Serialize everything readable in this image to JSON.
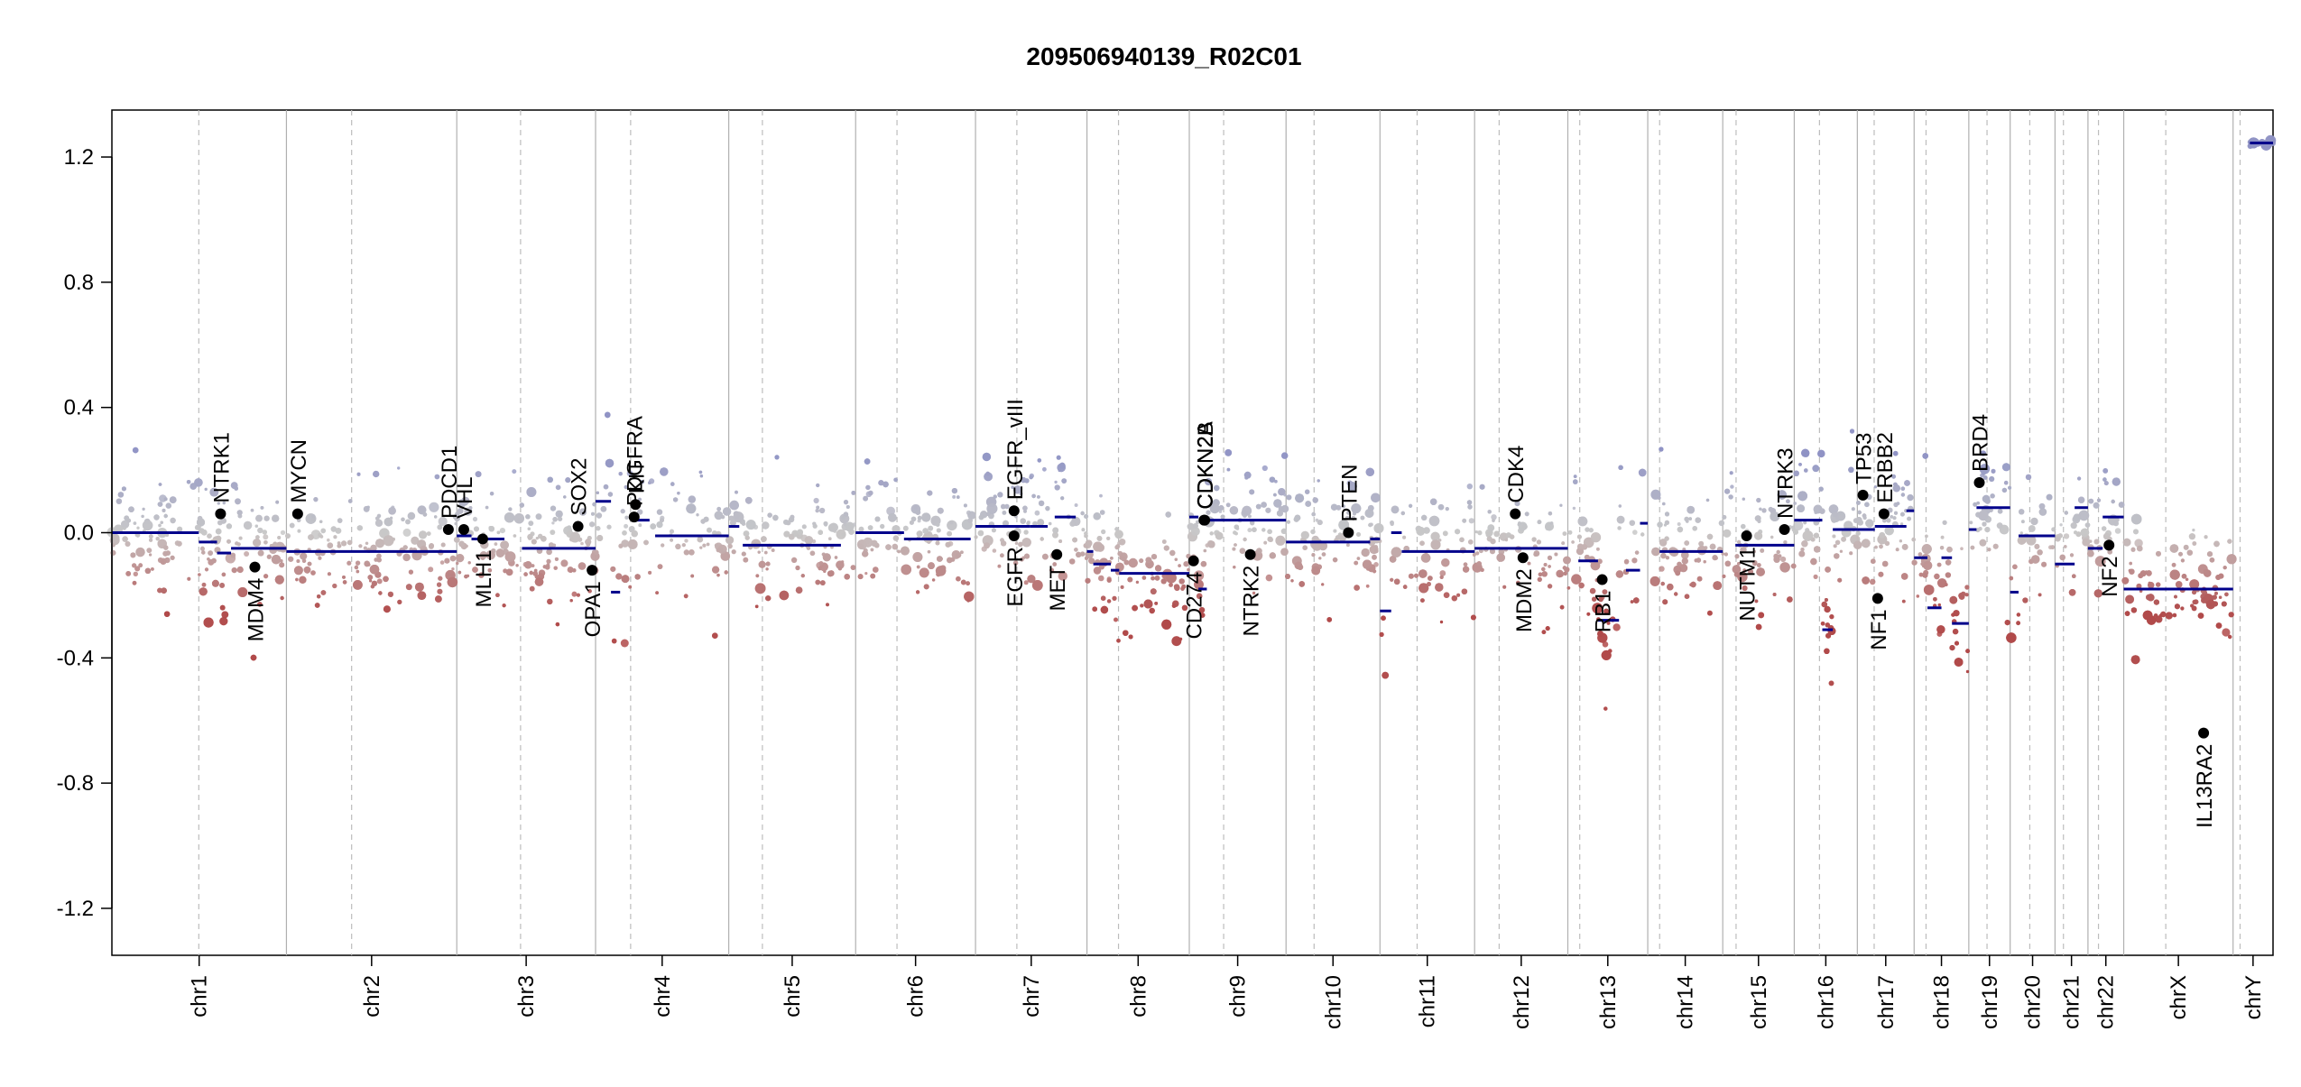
{
  "chart_data": {
    "type": "scatter",
    "title": "209506940139_R02C01",
    "xlabel": "",
    "ylabel": "",
    "ylim": [
      -1.35,
      1.35
    ],
    "yticks": [
      -1.2,
      -0.8,
      -0.4,
      0.0,
      0.4,
      0.8,
      1.2
    ],
    "ytick_labels": [
      "-1.2",
      "-0.8",
      "-0.4",
      "0.0",
      "0.4",
      "0.8",
      "1.2"
    ],
    "grid": false,
    "legend": "none",
    "colors": {
      "gain": "#8f93c4",
      "neutral": "#c8c8c8",
      "loss": "#b04a4a",
      "segment": "#00008b",
      "gene_marker": "#000000",
      "axis": "#000000",
      "chrom_boundary": "#b0b0b0"
    },
    "chromosomes": [
      {
        "name": "chr1",
        "start": 0,
        "end": 249,
        "centromere": 124
      },
      {
        "name": "chr2",
        "start": 249,
        "end": 492,
        "centromere": 93
      },
      {
        "name": "chr3",
        "start": 492,
        "end": 690,
        "centromere": 91
      },
      {
        "name": "chr4",
        "start": 690,
        "end": 880,
        "centromere": 50
      },
      {
        "name": "chr5",
        "start": 880,
        "end": 1061,
        "centromere": 48
      },
      {
        "name": "chr6",
        "start": 1061,
        "end": 1232,
        "centromere": 59
      },
      {
        "name": "chr7",
        "start": 1232,
        "end": 1391,
        "centromere": 59
      },
      {
        "name": "chr8",
        "start": 1391,
        "end": 1537,
        "centromere": 45
      },
      {
        "name": "chr9",
        "start": 1537,
        "end": 1675,
        "centromere": 49
      },
      {
        "name": "chr10",
        "start": 1675,
        "end": 1809,
        "centromere": 40
      },
      {
        "name": "chr11",
        "start": 1809,
        "end": 1944,
        "centromere": 53
      },
      {
        "name": "chr12",
        "start": 1944,
        "end": 2077,
        "centromere": 35
      },
      {
        "name": "chr13",
        "start": 2077,
        "end": 2191,
        "centromere": 17
      },
      {
        "name": "chr14",
        "start": 2191,
        "end": 2298,
        "centromere": 17
      },
      {
        "name": "chr15",
        "start": 2298,
        "end": 2400,
        "centromere": 19
      },
      {
        "name": "chr16",
        "start": 2400,
        "end": 2490,
        "centromere": 36
      },
      {
        "name": "chr17",
        "start": 2490,
        "end": 2571,
        "centromere": 24
      },
      {
        "name": "chr18",
        "start": 2571,
        "end": 2649,
        "centromere": 17
      },
      {
        "name": "chr19",
        "start": 2649,
        "end": 2708,
        "centromere": 26
      },
      {
        "name": "chr20",
        "start": 2708,
        "end": 2772,
        "centromere": 28
      },
      {
        "name": "chr21",
        "start": 2772,
        "end": 2819,
        "centromere": 12
      },
      {
        "name": "chr22",
        "start": 2819,
        "end": 2870,
        "centromere": 15
      },
      {
        "name": "chrX",
        "start": 2870,
        "end": 3026,
        "centromere": 60
      },
      {
        "name": "chrY",
        "start": 3026,
        "end": 3083,
        "centromere": 10
      }
    ],
    "segments": [
      {
        "chrom": "chr1",
        "start": 0,
        "end": 124,
        "value": 0.0
      },
      {
        "chrom": "chr1",
        "start": 124,
        "end": 150,
        "value": -0.03
      },
      {
        "chrom": "chr1",
        "start": 150,
        "end": 170,
        "value": -0.065
      },
      {
        "chrom": "chr1",
        "start": 170,
        "end": 249,
        "value": -0.05
      },
      {
        "chrom": "chr2",
        "start": 249,
        "end": 492,
        "value": -0.06
      },
      {
        "chrom": "chr3",
        "start": 492,
        "end": 513,
        "value": -0.01
      },
      {
        "chrom": "chr3",
        "start": 513,
        "end": 560,
        "value": -0.02
      },
      {
        "chrom": "chr3",
        "start": 585,
        "end": 690,
        "value": -0.05
      },
      {
        "chrom": "chr4",
        "start": 690,
        "end": 712,
        "value": 0.1
      },
      {
        "chrom": "chr4",
        "start": 712,
        "end": 725,
        "value": -0.19
      },
      {
        "chrom": "chr4",
        "start": 745,
        "end": 767,
        "value": 0.04
      },
      {
        "chrom": "chr4",
        "start": 775,
        "end": 880,
        "value": -0.01
      },
      {
        "chrom": "chr5",
        "start": 880,
        "end": 895,
        "value": 0.02
      },
      {
        "chrom": "chr5",
        "start": 900,
        "end": 1040,
        "value": -0.04
      },
      {
        "chrom": "chr6",
        "start": 1061,
        "end": 1130,
        "value": 0.0
      },
      {
        "chrom": "chr6",
        "start": 1130,
        "end": 1225,
        "value": -0.02
      },
      {
        "chrom": "chr7",
        "start": 1232,
        "end": 1310,
        "value": 0.02
      },
      {
        "chrom": "chr7",
        "start": 1310,
        "end": 1335,
        "value": 0.02
      },
      {
        "chrom": "chr7",
        "start": 1345,
        "end": 1375,
        "value": 0.05
      },
      {
        "chrom": "chr8",
        "start": 1391,
        "end": 1400,
        "value": -0.06
      },
      {
        "chrom": "chr8",
        "start": 1400,
        "end": 1425,
        "value": -0.1
      },
      {
        "chrom": "chr8",
        "start": 1425,
        "end": 1437,
        "value": -0.12
      },
      {
        "chrom": "chr8",
        "start": 1437,
        "end": 1537,
        "value": -0.13
      },
      {
        "chrom": "chr9",
        "start": 1537,
        "end": 1550,
        "value": 0.05
      },
      {
        "chrom": "chr9",
        "start": 1550,
        "end": 1562,
        "value": -0.18
      },
      {
        "chrom": "chr9",
        "start": 1562,
        "end": 1675,
        "value": 0.04
      },
      {
        "chrom": "chr10",
        "start": 1675,
        "end": 1795,
        "value": -0.03
      },
      {
        "chrom": "chr10",
        "start": 1795,
        "end": 1809,
        "value": -0.02
      },
      {
        "chrom": "chr11",
        "start": 1809,
        "end": 1825,
        "value": -0.25
      },
      {
        "chrom": "chr11",
        "start": 1825,
        "end": 1840,
        "value": 0.0
      },
      {
        "chrom": "chr11",
        "start": 1840,
        "end": 1944,
        "value": -0.06
      },
      {
        "chrom": "chr12",
        "start": 1944,
        "end": 2077,
        "value": -0.05
      },
      {
        "chrom": "chr13",
        "start": 2092,
        "end": 2120,
        "value": -0.09
      },
      {
        "chrom": "chr13",
        "start": 2120,
        "end": 2150,
        "value": -0.28
      },
      {
        "chrom": "chr13",
        "start": 2160,
        "end": 2180,
        "value": -0.12
      },
      {
        "chrom": "chr13",
        "start": 2180,
        "end": 2191,
        "value": 0.03
      },
      {
        "chrom": "chr14",
        "start": 2208,
        "end": 2298,
        "value": -0.06
      },
      {
        "chrom": "chr15",
        "start": 2316,
        "end": 2400,
        "value": -0.04
      },
      {
        "chrom": "chr16",
        "start": 2400,
        "end": 2440,
        "value": 0.04
      },
      {
        "chrom": "chr16",
        "start": 2440,
        "end": 2455,
        "value": -0.31
      },
      {
        "chrom": "chr16",
        "start": 2455,
        "end": 2490,
        "value": 0.01
      },
      {
        "chrom": "chr17",
        "start": 2490,
        "end": 2515,
        "value": 0.01
      },
      {
        "chrom": "chr17",
        "start": 2515,
        "end": 2560,
        "value": 0.02
      },
      {
        "chrom": "chr17",
        "start": 2560,
        "end": 2571,
        "value": 0.07
      },
      {
        "chrom": "chr18",
        "start": 2571,
        "end": 2590,
        "value": -0.08
      },
      {
        "chrom": "chr18",
        "start": 2590,
        "end": 2610,
        "value": -0.24
      },
      {
        "chrom": "chr18",
        "start": 2610,
        "end": 2625,
        "value": -0.08
      },
      {
        "chrom": "chr18",
        "start": 2625,
        "end": 2649,
        "value": -0.29
      },
      {
        "chrom": "chr19",
        "start": 2649,
        "end": 2660,
        "value": 0.01
      },
      {
        "chrom": "chr19",
        "start": 2660,
        "end": 2708,
        "value": 0.08
      },
      {
        "chrom": "chr20",
        "start": 2708,
        "end": 2720,
        "value": -0.19
      },
      {
        "chrom": "chr20",
        "start": 2720,
        "end": 2772,
        "value": -0.01
      },
      {
        "chrom": "chr21",
        "start": 2772,
        "end": 2800,
        "value": -0.1
      },
      {
        "chrom": "chr21",
        "start": 2800,
        "end": 2819,
        "value": 0.08
      },
      {
        "chrom": "chr22",
        "start": 2819,
        "end": 2840,
        "value": -0.05
      },
      {
        "chrom": "chr22",
        "start": 2840,
        "end": 2870,
        "value": 0.05
      },
      {
        "chrom": "chrX",
        "start": 2870,
        "end": 3026,
        "value": -0.18
      },
      {
        "chrom": "chrY",
        "start": 3050,
        "end": 3083,
        "value": 1.245
      }
    ],
    "genes": [
      {
        "name": "NTRK1",
        "pos": 155,
        "value": 0.06,
        "label_side": "up"
      },
      {
        "name": "MDM4",
        "pos": 204,
        "value": -0.11,
        "label_side": "down"
      },
      {
        "name": "MYCN",
        "pos": 265,
        "value": 0.06,
        "label_side": "up"
      },
      {
        "name": "PDCD1",
        "pos": 480,
        "value": 0.01,
        "label_side": "up"
      },
      {
        "name": "VHL",
        "pos": 502,
        "value": 0.01,
        "label_side": "up"
      },
      {
        "name": "MLH1",
        "pos": 529,
        "value": -0.02,
        "label_side": "down"
      },
      {
        "name": "SOX2",
        "pos": 665,
        "value": 0.02,
        "label_side": "up"
      },
      {
        "name": "OPA1",
        "pos": 685,
        "value": -0.12,
        "label_side": "down"
      },
      {
        "name": "PDGFRA",
        "pos": 745,
        "value": 0.05,
        "label_side": "up"
      },
      {
        "name": "KIT",
        "pos": 747,
        "value": 0.09,
        "label_side": "up"
      },
      {
        "name": "EGFR_vIII",
        "pos": 1287,
        "value": 0.07,
        "label_side": "up"
      },
      {
        "name": "EGFR",
        "pos": 1287,
        "value": -0.01,
        "label_side": "down"
      },
      {
        "name": "MET",
        "pos": 1348,
        "value": -0.07,
        "label_side": "down"
      },
      {
        "name": "CD274",
        "pos": 1543,
        "value": -0.09,
        "label_side": "down"
      },
      {
        "name": "CDKN2A",
        "pos": 1558,
        "value": 0.04,
        "label_side": "up"
      },
      {
        "name": "CDKN2B",
        "pos": 1559,
        "value": 0.04,
        "label_side": "up"
      },
      {
        "name": "NTRK2",
        "pos": 1624,
        "value": -0.07,
        "label_side": "down"
      },
      {
        "name": "PTEN",
        "pos": 1764,
        "value": 0.0,
        "label_side": "up"
      },
      {
        "name": "CDK4",
        "pos": 2002,
        "value": 0.06,
        "label_side": "up"
      },
      {
        "name": "MDM2",
        "pos": 2013,
        "value": -0.08,
        "label_side": "down"
      },
      {
        "name": "RB1",
        "pos": 2126,
        "value": -0.15,
        "label_side": "down"
      },
      {
        "name": "NUTM1",
        "pos": 2332,
        "value": -0.01,
        "label_side": "down"
      },
      {
        "name": "NTRK3",
        "pos": 2386,
        "value": 0.01,
        "label_side": "up"
      },
      {
        "name": "TP53",
        "pos": 2498,
        "value": 0.12,
        "label_side": "up"
      },
      {
        "name": "NF1",
        "pos": 2519,
        "value": -0.21,
        "label_side": "down"
      },
      {
        "name": "ERBB2",
        "pos": 2528,
        "value": 0.06,
        "label_side": "up"
      },
      {
        "name": "BRD4",
        "pos": 2664,
        "value": 0.16,
        "label_side": "up"
      },
      {
        "name": "NF2",
        "pos": 2849,
        "value": -0.04,
        "label_side": "down"
      },
      {
        "name": "IL13RA2",
        "pos": 2984,
        "value": -0.64,
        "label_side": "down"
      }
    ]
  }
}
